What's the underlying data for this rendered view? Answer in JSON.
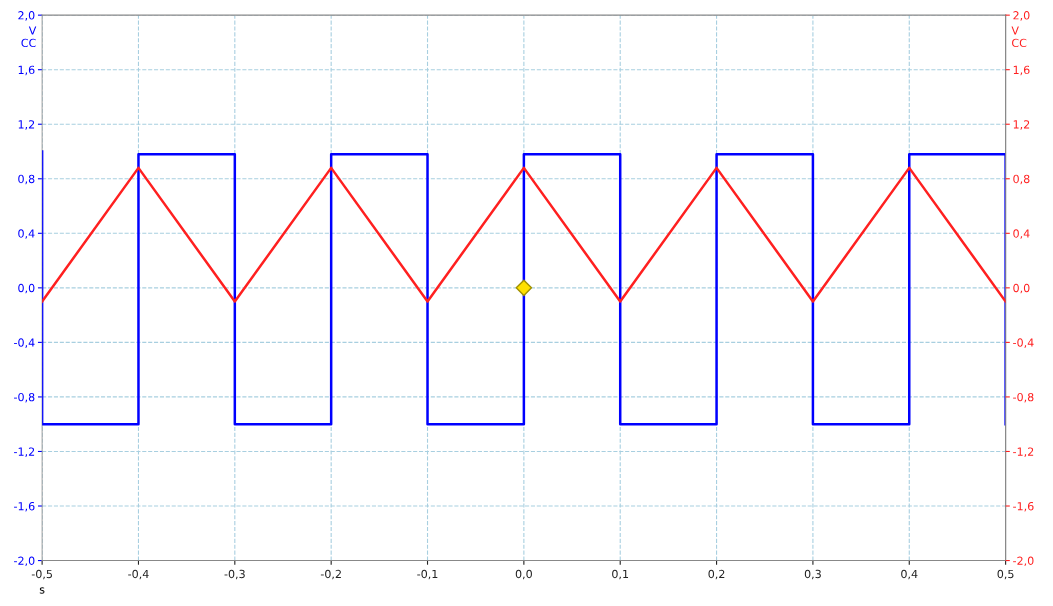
{
  "chart_data": {
    "type": "line",
    "xlabel": "s",
    "ylabel": "V\nCC",
    "y2label": "V\nCC",
    "xlim": [
      -0.5,
      0.5
    ],
    "xticks": [
      {
        "value": -0.5,
        "label": "-0,5"
      },
      {
        "value": -0.4,
        "label": "-0,4"
      },
      {
        "value": -0.3,
        "label": "-0,3"
      },
      {
        "value": -0.2,
        "label": "-0,2"
      },
      {
        "value": -0.1,
        "label": "-0,1"
      },
      {
        "value": 0.0,
        "label": "0,0"
      },
      {
        "value": 0.1,
        "label": "0,1"
      },
      {
        "value": 0.2,
        "label": "0,2"
      },
      {
        "value": 0.3,
        "label": "0,3"
      },
      {
        "value": 0.4,
        "label": "0,4"
      },
      {
        "value": 0.5,
        "label": "0,5"
      }
    ],
    "ylim": [
      -2.0,
      2.0
    ],
    "yticks": [
      {
        "value": -2.0,
        "label": "-2,0"
      },
      {
        "value": -1.6,
        "label": "-1,6"
      },
      {
        "value": -1.2,
        "label": "-1,2"
      },
      {
        "value": -0.8,
        "label": "-0,8"
      },
      {
        "value": -0.4,
        "label": "-0,4"
      },
      {
        "value": 0.0,
        "label": "0,0"
      },
      {
        "value": 0.4,
        "label": "0,4"
      },
      {
        "value": 0.8,
        "label": "0,8"
      },
      {
        "value": 1.2,
        "label": "1,2"
      },
      {
        "value": 1.6,
        "label": "1,6"
      },
      {
        "value": 2.0,
        "label": "2,0"
      }
    ],
    "y2lim": [
      -2.0,
      2.0
    ],
    "y2ticks": [
      {
        "value": -2.0,
        "label": "-2,0"
      },
      {
        "value": -1.6,
        "label": "-1,6"
      },
      {
        "value": -1.2,
        "label": "-1,2"
      },
      {
        "value": -0.8,
        "label": "-0,8"
      },
      {
        "value": -0.4,
        "label": "-0,4"
      },
      {
        "value": 0.0,
        "label": "0,0"
      },
      {
        "value": 0.4,
        "label": "0,4"
      },
      {
        "value": 0.8,
        "label": "0,8"
      },
      {
        "value": 1.2,
        "label": "1,2"
      },
      {
        "value": 1.6,
        "label": "1,6"
      },
      {
        "value": 2.0,
        "label": "2,0"
      }
    ],
    "grid": true,
    "legend": false,
    "marker": "none",
    "line_style": "solid",
    "series": [
      {
        "color": "#0000ff",
        "x": [
          -0.5,
          -0.5,
          -0.4,
          -0.4,
          -0.3,
          -0.3,
          -0.2,
          -0.2,
          -0.1,
          -0.1,
          0.0,
          0.0,
          0.1,
          0.1,
          0.2,
          0.2,
          0.3,
          0.3,
          0.4,
          0.4,
          0.5,
          0.5
        ],
        "values": [
          1.0,
          -1.0,
          -1.0,
          0.98,
          0.98,
          -1.0,
          -1.0,
          0.98,
          0.98,
          -1.0,
          -1.0,
          0.98,
          0.98,
          -1.0,
          -1.0,
          0.98,
          0.98,
          -1.0,
          -1.0,
          0.98,
          0.98,
          -1.0
        ]
      },
      {
        "color": "#ff2020",
        "axis": "y2",
        "x": [
          -0.5,
          -0.4,
          -0.3,
          -0.2,
          -0.1,
          0.0,
          0.1,
          0.2,
          0.3,
          0.4,
          0.5
        ],
        "values": [
          -0.1,
          0.88,
          -0.1,
          0.88,
          -0.1,
          0.88,
          -0.1,
          0.88,
          -0.1,
          0.88,
          -0.1
        ]
      },
      {
        "type": "scatter",
        "marker": "diamond",
        "color": "#ffe000",
        "x": [
          0.0
        ],
        "values": [
          0.0
        ]
      }
    ]
  }
}
